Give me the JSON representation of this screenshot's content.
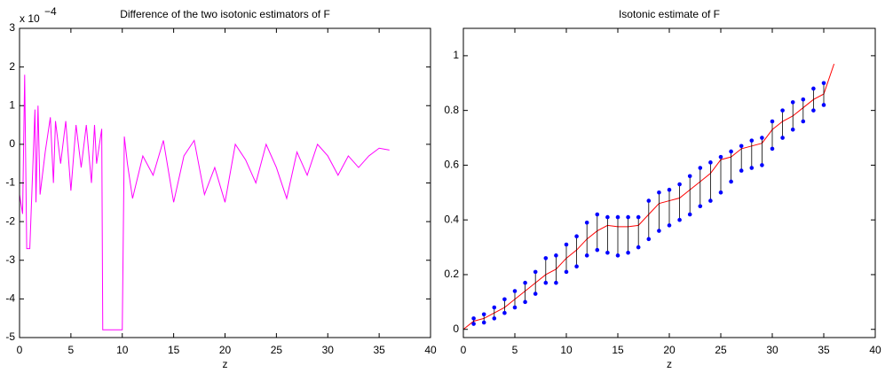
{
  "chart_data": [
    {
      "type": "line",
      "title": "Difference of the two isotonic estimators of F",
      "xlabel": "z",
      "y_multiplier": "x 10",
      "y_multiplier_exponent": "−4",
      "x": [
        0,
        0.3,
        0.5,
        0.7,
        1.0,
        1.5,
        1.6,
        1.8,
        2.0,
        2.5,
        3.0,
        3.3,
        3.5,
        4.0,
        4.5,
        5.0,
        5.5,
        6.0,
        6.5,
        7.0,
        7.3,
        7.5,
        8.0,
        8.1,
        10.0,
        10.2,
        10.5,
        11,
        12,
        13,
        14,
        15,
        16,
        17,
        18,
        19,
        20,
        21,
        22,
        23,
        24,
        25,
        26,
        27,
        28,
        29,
        30,
        31,
        32,
        33,
        34,
        35,
        36
      ],
      "values": [
        -1.3,
        -1.8,
        1.8,
        -2.7,
        -2.7,
        0.9,
        -1.5,
        1.0,
        -1.3,
        -0.2,
        0.7,
        -1.0,
        0.6,
        -0.5,
        0.6,
        -1.2,
        0.5,
        -0.6,
        0.5,
        -1.0,
        0.5,
        -0.5,
        0.4,
        -4.8,
        -4.8,
        0.2,
        -0.5,
        -1.4,
        -0.3,
        -0.8,
        0.1,
        -1.5,
        -0.3,
        0.1,
        -1.3,
        -0.6,
        -1.5,
        0.0,
        -0.4,
        -1.0,
        0.0,
        -0.6,
        -1.4,
        -0.2,
        -0.8,
        0.0,
        -0.3,
        -0.8,
        -0.3,
        -0.6,
        -0.3,
        -0.1,
        -0.15
      ],
      "color": "#ff00ff",
      "xlim": [
        0,
        40
      ],
      "xticks": [
        0,
        5,
        10,
        15,
        20,
        25,
        30,
        35,
        40
      ],
      "ylim": [
        -5,
        3
      ],
      "yticks": [
        -5,
        -4,
        -3,
        -2,
        -1,
        0,
        1,
        2,
        3
      ]
    },
    {
      "type": "line",
      "title": "Isotonic estimate of F",
      "xlabel": "z",
      "x": [
        0,
        1,
        2,
        3,
        4,
        5,
        6,
        7,
        8,
        9,
        10,
        11,
        12,
        13,
        14,
        15,
        16,
        17,
        18,
        19,
        20,
        21,
        22,
        23,
        24,
        25,
        26,
        27,
        28,
        29,
        30,
        31,
        32,
        33,
        34,
        35,
        36
      ],
      "values": [
        0,
        0.03,
        0.04,
        0.06,
        0.08,
        0.11,
        0.14,
        0.17,
        0.2,
        0.22,
        0.26,
        0.29,
        0.33,
        0.36,
        0.38,
        0.375,
        0.375,
        0.38,
        0.42,
        0.46,
        0.47,
        0.48,
        0.51,
        0.54,
        0.57,
        0.62,
        0.63,
        0.66,
        0.67,
        0.68,
        0.73,
        0.76,
        0.78,
        0.81,
        0.84,
        0.86,
        0.97
      ],
      "color": "#ff0000",
      "stems": {
        "color": "#0000ff",
        "x": [
          1,
          2,
          3,
          4,
          5,
          6,
          7,
          8,
          9,
          10,
          11,
          12,
          13,
          14,
          15,
          16,
          17,
          18,
          19,
          20,
          21,
          22,
          23,
          24,
          25,
          26,
          27,
          28,
          29,
          30,
          31,
          32,
          33,
          34,
          35
        ],
        "upper": [
          0.04,
          0.055,
          0.08,
          0.11,
          0.14,
          0.17,
          0.21,
          0.26,
          0.27,
          0.31,
          0.34,
          0.39,
          0.42,
          0.41,
          0.41,
          0.41,
          0.41,
          0.47,
          0.5,
          0.51,
          0.53,
          0.56,
          0.59,
          0.61,
          0.63,
          0.65,
          0.67,
          0.69,
          0.7,
          0.76,
          0.8,
          0.83,
          0.84,
          0.88,
          0.9
        ],
        "lower": [
          0.02,
          0.025,
          0.04,
          0.06,
          0.08,
          0.1,
          0.13,
          0.17,
          0.17,
          0.21,
          0.23,
          0.27,
          0.29,
          0.28,
          0.27,
          0.28,
          0.3,
          0.33,
          0.36,
          0.38,
          0.4,
          0.42,
          0.45,
          0.47,
          0.5,
          0.54,
          0.58,
          0.59,
          0.6,
          0.66,
          0.7,
          0.73,
          0.76,
          0.8,
          0.82
        ]
      },
      "xlim": [
        0,
        40
      ],
      "xticks": [
        0,
        5,
        10,
        15,
        20,
        25,
        30,
        35,
        40
      ],
      "ylim": [
        -0.03,
        1.1
      ],
      "yticks": [
        0,
        0.2,
        0.4,
        0.6,
        0.8,
        1
      ]
    }
  ]
}
